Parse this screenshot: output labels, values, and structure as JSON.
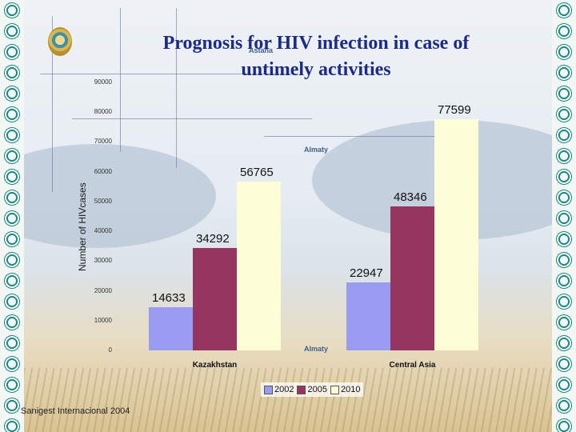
{
  "title": "Prognosis for HIV infection in case of untimely activities",
  "map_labels": {
    "astana": "Astana",
    "almaty_top": "Almaty",
    "almaty_bottom": "Almaty"
  },
  "footer": "Sanigest Internacional 2004",
  "chart_data": {
    "type": "bar",
    "categories": [
      "Kazakhstan",
      "Central Asia"
    ],
    "series": [
      {
        "name": "2002",
        "values": [
          14633,
          22947
        ],
        "color": "#9a9cf2"
      },
      {
        "name": "2005",
        "values": [
          34292,
          48346
        ],
        "color": "#963560"
      },
      {
        "name": "2010",
        "values": [
          56765,
          77599
        ],
        "color": "#fefed6"
      }
    ],
    "ylabel": "Number of HIVcases",
    "ylim": [
      0,
      90000
    ],
    "yticks": [
      "0",
      "10000",
      "20000",
      "30000",
      "40000",
      "50000",
      "60000",
      "70000",
      "80000",
      "90000"
    ],
    "legend": "bottom-center",
    "grid": false
  }
}
